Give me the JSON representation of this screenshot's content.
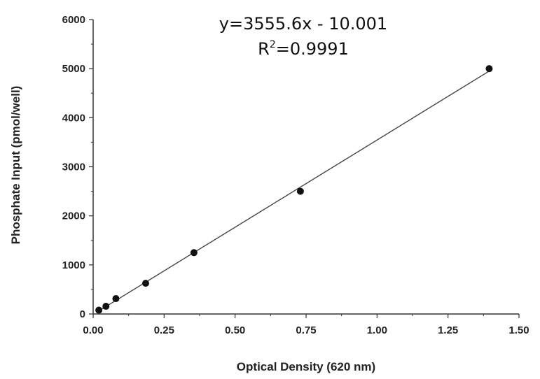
{
  "chart_data": {
    "type": "scatter",
    "xlabel": "Optical Density (620 nm)",
    "ylabel": "Phosphate Input (pmol/well)",
    "xlim": [
      0,
      1.5
    ],
    "ylim": [
      0,
      6000
    ],
    "x_ticks": [
      "0.00",
      "0.25",
      "0.50",
      "0.75",
      "1.00",
      "1.25",
      "1.50"
    ],
    "y_ticks": [
      "0",
      "1000",
      "2000",
      "3000",
      "4000",
      "5000",
      "6000"
    ],
    "grid": false,
    "series": [
      {
        "x": [
          0.02,
          0.045,
          0.08,
          0.185,
          0.355,
          0.73,
          1.395
        ],
        "y": [
          78,
          156,
          313,
          625,
          1250,
          2500,
          5000
        ]
      }
    ],
    "trendline": {
      "slope": 3555.6,
      "intercept": -10.001,
      "x_range": [
        0.02,
        1.395
      ]
    },
    "annotations": {
      "equation": "y=3555.6x - 10.001",
      "r2_prefix": "R",
      "r2_sup": "2",
      "r2_value": "=0.9991"
    },
    "colors": {
      "marker": "#111111",
      "line": "#444444",
      "axis": "#333333"
    }
  }
}
